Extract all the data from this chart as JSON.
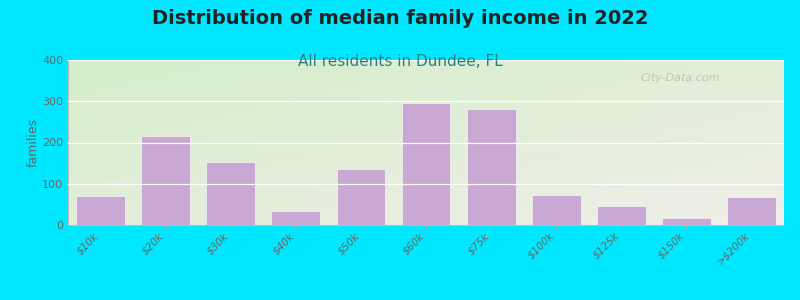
{
  "title": "Distribution of median family income in 2022",
  "subtitle": "All residents in Dundee, FL",
  "ylabel": "families",
  "categories": [
    "$10k",
    "$20k",
    "$30k",
    "$40k",
    "$50k",
    "$60k",
    "$75k",
    "$100k",
    "$125k",
    "$150k",
    ">$200k"
  ],
  "values": [
    70,
    215,
    152,
    35,
    135,
    295,
    282,
    72,
    45,
    18,
    68
  ],
  "bar_color": "#c9a8d4",
  "ylim": [
    0,
    400
  ],
  "yticks": [
    0,
    100,
    200,
    300,
    400
  ],
  "bg_left_top": "#d4edca",
  "bg_right_bottom": "#f0f0e8",
  "figure_bg": "#00e8ff",
  "title_fontsize": 14,
  "title_color": "#222222",
  "subtitle_fontsize": 11,
  "subtitle_color": "#2a8080",
  "watermark": "City-Data.com"
}
